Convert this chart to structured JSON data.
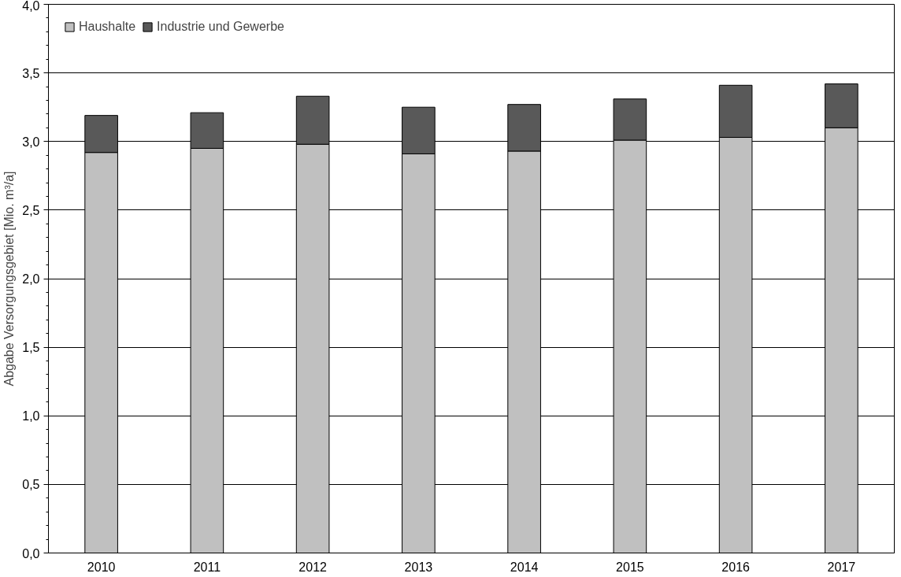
{
  "chart_data": {
    "type": "bar",
    "stacked": true,
    "ylabel": "Abgabe Versorgungsgebiet [Mio. m³/a]",
    "categories": [
      "2010",
      "2011",
      "2012",
      "2013",
      "2014",
      "2015",
      "2016",
      "2017"
    ],
    "series": [
      {
        "name": "Haushalte",
        "color": "#c0c0c0",
        "values": [
          2.92,
          2.95,
          2.98,
          2.91,
          2.93,
          3.01,
          3.03,
          3.1
        ]
      },
      {
        "name": "Industrie und Gewerbe",
        "color": "#595959",
        "values": [
          0.27,
          0.26,
          0.35,
          0.34,
          0.34,
          0.3,
          0.38,
          0.32
        ]
      }
    ],
    "ylim": [
      0,
      4
    ],
    "yticks": [
      {
        "value": 0,
        "label": "0,0"
      },
      {
        "value": 0.5,
        "label": "0,5"
      },
      {
        "value": 1,
        "label": "1,0"
      },
      {
        "value": 1.5,
        "label": "1,5"
      },
      {
        "value": 2,
        "label": "2,0"
      },
      {
        "value": 2.5,
        "label": "2,5"
      },
      {
        "value": 3,
        "label": "3,0"
      },
      {
        "value": 3.5,
        "label": "3,5"
      },
      {
        "value": 4,
        "label": "4,0"
      }
    ],
    "grid": "y",
    "legend": "top left"
  }
}
